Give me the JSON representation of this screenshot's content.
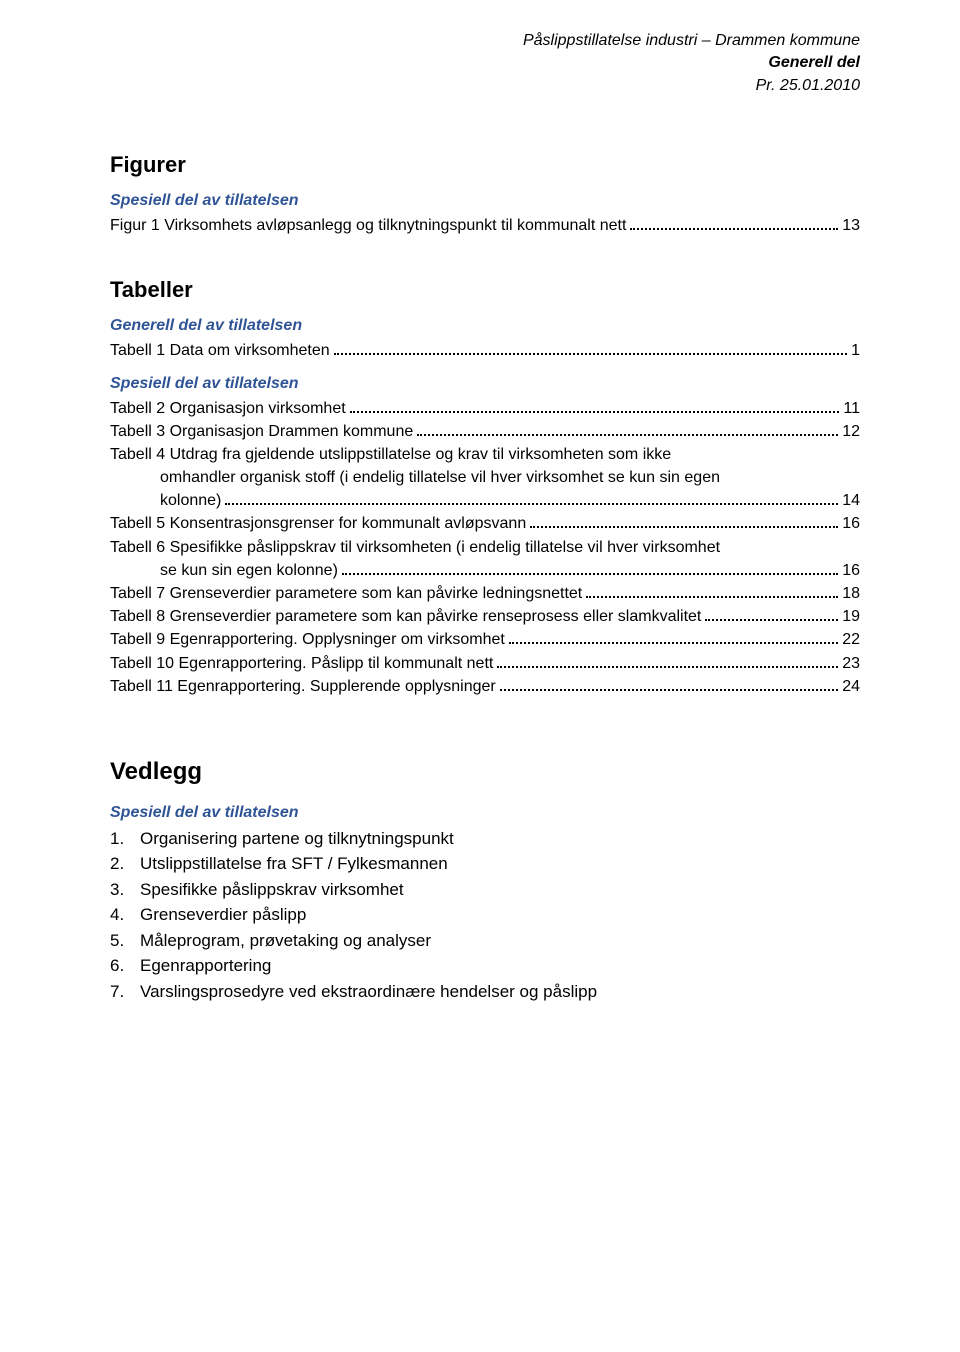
{
  "header": {
    "line1": "Påslippstillatelse industri – Drammen kommune",
    "line2": "Generell del",
    "line3": "Pr. 25.01.2010"
  },
  "figurer": {
    "title": "Figurer",
    "subhead": "Spesiell del av tillatelsen",
    "entries": [
      {
        "label": "Figur 1 Virksomhets avløpsanlegg og tilknytningspunkt til kommunalt nett",
        "page": "13"
      }
    ]
  },
  "tabeller": {
    "title": "Tabeller",
    "groups": [
      {
        "subhead": "Generell del av tillatelsen",
        "entries": [
          {
            "label": "Tabell 1 Data om virksomheten",
            "page": "1"
          }
        ]
      },
      {
        "subhead": "Spesiell del av tillatelsen",
        "entries": [
          {
            "label": "Tabell 2 Organisasjon virksomhet",
            "page": "11"
          },
          {
            "label": "Tabell 3 Organisasjon Drammen kommune",
            "page": "12"
          },
          {
            "label": "Tabell 4 Utdrag fra gjeldende utslippstillatelse og krav til virksomheten som ikke",
            "cont": [
              "omhandler organisk stoff (i endelig tillatelse vil hver virksomhet se kun sin egen",
              "kolonne)"
            ],
            "page": "14"
          },
          {
            "label": "Tabell 5 Konsentrasjonsgrenser for kommunalt avløpsvann",
            "page": "16"
          },
          {
            "label": "Tabell 6 Spesifikke påslippskrav til virksomheten (i endelig tillatelse vil hver virksomhet",
            "cont": [
              "se kun sin egen kolonne)"
            ],
            "page": "16"
          },
          {
            "label": "Tabell 7 Grenseverdier parametere som kan påvirke ledningsnettet",
            "page": "18"
          },
          {
            "label": "Tabell 8 Grenseverdier parametere som kan påvirke renseprosess eller slamkvalitet",
            "page": "19"
          },
          {
            "label": "Tabell 9 Egenrapportering. Opplysninger om virksomhet",
            "page": "22"
          },
          {
            "label": "Tabell 10 Egenrapportering. Påslipp til kommunalt nett",
            "page": "23"
          },
          {
            "label": "Tabell 11 Egenrapportering. Supplerende opplysninger",
            "page": "24"
          }
        ]
      }
    ]
  },
  "vedlegg": {
    "title": "Vedlegg",
    "subhead": "Spesiell del av tillatelsen",
    "items": [
      "Organisering partene og tilknytningspunkt",
      "Utslippstillatelse fra SFT / Fylkesmannen",
      "Spesifikke påslippskrav virksomhet",
      "Grenseverdier påslipp",
      "Måleprogram, prøvetaking og analyser",
      "Egenrapportering",
      "Varslingsprosedyre ved ekstraordinære hendelser og påslipp"
    ]
  },
  "colors": {
    "subhead": "#2f5496",
    "text": "#000000",
    "background": "#ffffff"
  },
  "fonts": {
    "body_family": "Verdana",
    "body_size_pt": 12,
    "heading_size_pt": 17,
    "big_heading_size_pt": 18
  }
}
